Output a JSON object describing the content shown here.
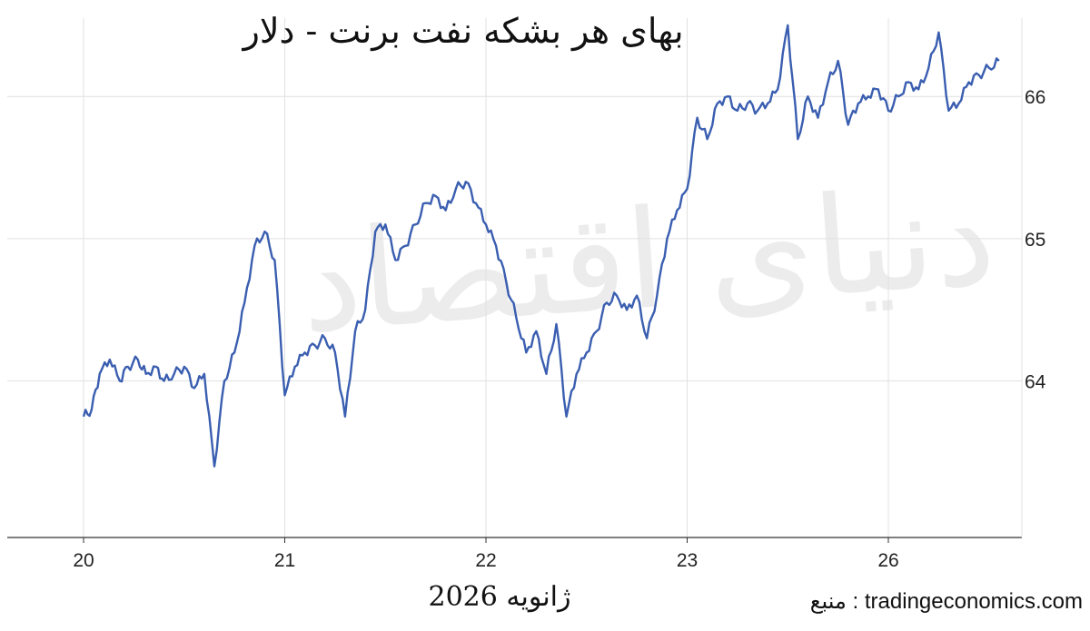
{
  "chart_data": {
    "type": "line",
    "title": "بهای هر بشکه نفت برنت - دلار",
    "xlabel": "ژانویه 2026",
    "ylabel": "",
    "source": "tradingeconomics.com : منبع",
    "watermark": "دنیای اقتصاد",
    "x_ticks": [
      "20",
      "21",
      "22",
      "23",
      "26"
    ],
    "y_ticks": [
      64,
      65,
      66
    ],
    "ylim": [
      62.9,
      66.55
    ],
    "grid": true,
    "colors": {
      "line": "#3a5eb0",
      "grid": "#e1e1e1",
      "axis": "#333333"
    },
    "series": [
      {
        "x": [
          0.0,
          0.04,
          0.08,
          0.13,
          0.18,
          0.22,
          0.27,
          0.31,
          0.36,
          0.4,
          0.45,
          0.5,
          0.55,
          0.6,
          0.65,
          0.7,
          0.75,
          0.8,
          0.85,
          0.9,
          0.95,
          1.0,
          1.05,
          1.1,
          1.15,
          1.2,
          1.25,
          1.3,
          1.35,
          1.4,
          1.45,
          1.5,
          1.55,
          1.6,
          1.65,
          1.7,
          1.75,
          1.8,
          1.85,
          1.9,
          1.95,
          2.0,
          2.05,
          2.1,
          2.15,
          2.2,
          2.25,
          2.3,
          2.35,
          2.4,
          2.45,
          2.5,
          2.55,
          2.6,
          2.65,
          2.7,
          2.75,
          2.8,
          2.85,
          2.9,
          2.95,
          3.0,
          3.05,
          3.1,
          3.15,
          3.2,
          3.25,
          3.3,
          3.35,
          3.4,
          3.45,
          3.5,
          3.55,
          3.6,
          3.65,
          3.7,
          3.75,
          3.8,
          3.85,
          3.9,
          3.95,
          4.0,
          4.05,
          4.1,
          4.15,
          4.2,
          4.25,
          4.3,
          4.35,
          4.4,
          4.45,
          4.5,
          4.55
        ],
        "values": [
          63.75,
          63.8,
          64.05,
          64.15,
          64.0,
          64.1,
          64.15,
          64.05,
          64.1,
          64.0,
          64.05,
          64.1,
          63.95,
          64.05,
          63.4,
          64.0,
          64.2,
          64.55,
          64.95,
          65.05,
          64.85,
          63.9,
          64.1,
          64.2,
          64.25,
          64.3,
          64.2,
          63.75,
          64.35,
          64.5,
          65.05,
          65.1,
          64.85,
          64.95,
          65.1,
          65.25,
          65.3,
          65.2,
          65.35,
          65.4,
          65.25,
          65.1,
          64.95,
          64.7,
          64.45,
          64.2,
          64.35,
          64.05,
          64.4,
          63.75,
          64.05,
          64.2,
          64.35,
          64.55,
          64.6,
          64.5,
          64.6,
          64.3,
          64.6,
          65.0,
          65.2,
          65.35,
          65.85,
          65.7,
          65.95,
          66.0,
          65.9,
          65.95,
          65.9,
          65.95,
          66.05,
          66.5,
          65.7,
          66.0,
          65.85,
          66.1,
          66.25,
          65.8,
          65.95,
          66.0,
          66.05,
          65.9,
          66.0,
          66.1,
          66.05,
          66.2,
          66.45,
          65.9,
          65.95,
          66.1,
          66.15,
          66.2,
          66.25
        ]
      }
    ]
  }
}
